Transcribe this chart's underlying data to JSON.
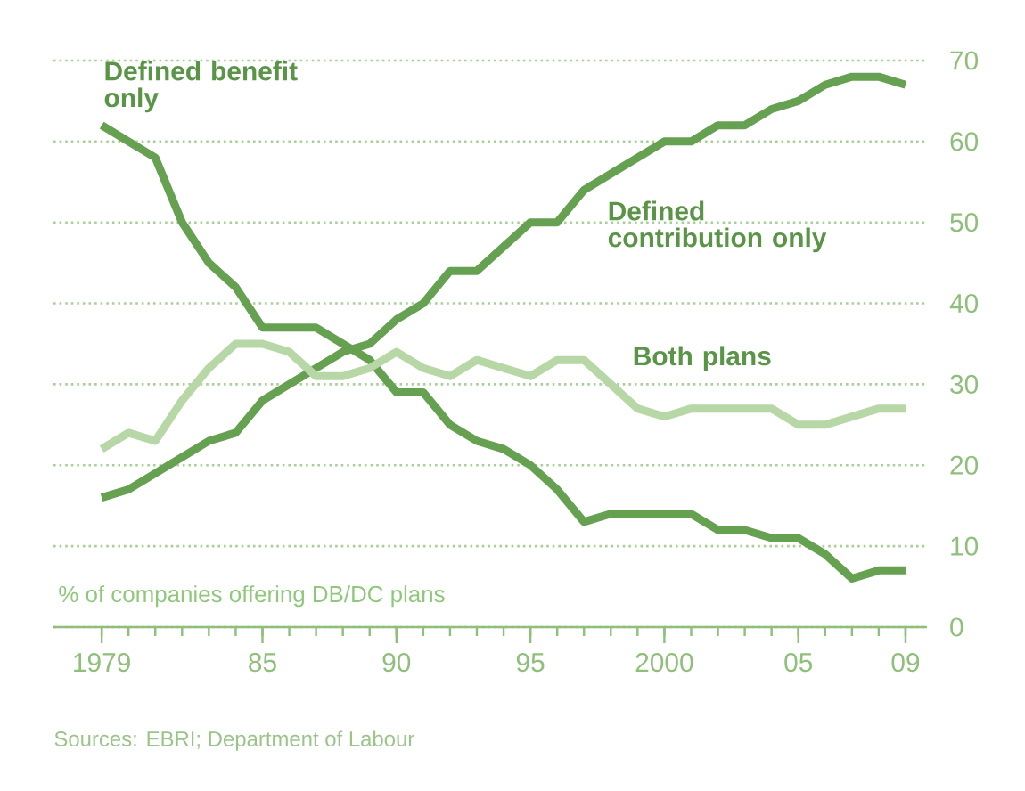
{
  "chart_data": {
    "type": "line",
    "ylabel": "% of companies offering DB/DC plans",
    "annotations": [
      "Sources: EBRI; Department of Labour"
    ],
    "x": [
      1979,
      1980,
      1981,
      1982,
      1983,
      1984,
      1985,
      1986,
      1987,
      1988,
      1989,
      1990,
      1991,
      1992,
      1993,
      1994,
      1995,
      1996,
      1997,
      1998,
      1999,
      2000,
      2001,
      2002,
      2003,
      2004,
      2005,
      2006,
      2007,
      2008,
      2009
    ],
    "series": [
      {
        "name": "Defined benefit only",
        "color": "#66a152",
        "values": [
          62,
          60,
          58,
          50,
          45,
          42,
          37,
          37,
          37,
          35,
          33,
          29,
          29,
          25,
          23,
          22,
          20,
          17,
          13,
          14,
          14,
          14,
          14,
          12,
          12,
          11,
          11,
          9,
          6,
          7,
          7
        ]
      },
      {
        "name": "Defined contribution only",
        "color": "#66a152",
        "values": [
          16,
          17,
          19,
          21,
          23,
          24,
          28,
          30,
          32,
          34,
          35,
          38,
          40,
          44,
          44,
          47,
          50,
          50,
          54,
          56,
          58,
          60,
          60,
          62,
          62,
          64,
          65,
          67,
          68,
          68,
          67
        ]
      },
      {
        "name": "Both plans",
        "color": "#b7d7a6",
        "values": [
          22,
          24,
          23,
          28,
          32,
          35,
          35,
          34,
          31,
          31,
          32,
          34,
          32,
          31,
          33,
          32,
          31,
          33,
          33,
          30,
          27,
          26,
          27,
          27,
          27,
          27,
          25,
          25,
          26,
          27,
          27
        ]
      }
    ],
    "xlim": [
      1977.2,
      2009.8
    ],
    "ylim": [
      0,
      70
    ],
    "xticks": [
      {
        "value": 1979,
        "label": "1979"
      },
      {
        "value": 1985,
        "label": "85"
      },
      {
        "value": 1990,
        "label": "90"
      },
      {
        "value": 1995,
        "label": "95"
      },
      {
        "value": 2000,
        "label": "2000"
      },
      {
        "value": 2005,
        "label": "05"
      },
      {
        "value": 2009,
        "label": "09"
      }
    ],
    "yticks": [
      0,
      10,
      20,
      30,
      40,
      50,
      60,
      70
    ],
    "grid": "y",
    "marker": "none",
    "line_style": "solid"
  }
}
